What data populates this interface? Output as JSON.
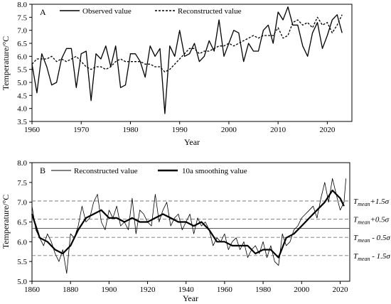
{
  "chart_data": [
    {
      "type": "line",
      "panel_label": "A",
      "xlabel": "Year",
      "ylabel": "Temperature/°C",
      "xlim": [
        1960,
        2025
      ],
      "ylim": [
        3.5,
        8.0
      ],
      "x_ticks": [
        1960,
        1970,
        1980,
        1990,
        2000,
        2010,
        2020
      ],
      "y_ticks": [
        3.5,
        4.0,
        4.5,
        5.0,
        5.5,
        6.0,
        6.5,
        7.0,
        7.5,
        8.0
      ],
      "legend_position": "top",
      "series": [
        {
          "name": "Observed value",
          "style": "solid",
          "x": [
            1960,
            1961,
            1962,
            1963,
            1964,
            1965,
            1966,
            1967,
            1968,
            1969,
            1970,
            1971,
            1972,
            1973,
            1974,
            1975,
            1976,
            1977,
            1978,
            1979,
            1980,
            1981,
            1982,
            1983,
            1984,
            1985,
            1986,
            1987,
            1988,
            1989,
            1990,
            1991,
            1992,
            1993,
            1994,
            1995,
            1996,
            1997,
            1998,
            1999,
            2000,
            2001,
            2002,
            2003,
            2004,
            2005,
            2006,
            2007,
            2008,
            2009,
            2010,
            2011,
            2012,
            2013,
            2014,
            2015,
            2016,
            2017,
            2018,
            2019,
            2020,
            2021,
            2022,
            2023
          ],
          "y": [
            5.7,
            4.6,
            6.1,
            5.6,
            4.9,
            5.0,
            5.9,
            6.3,
            6.3,
            4.8,
            6.1,
            6.2,
            4.3,
            6.1,
            5.9,
            6.4,
            5.6,
            6.4,
            4.8,
            4.9,
            6.1,
            6.1,
            5.8,
            5.2,
            6.4,
            6.0,
            6.3,
            3.8,
            6.4,
            6.0,
            7.0,
            6.0,
            6.1,
            6.5,
            5.8,
            6.0,
            6.6,
            6.2,
            7.4,
            6.0,
            6.5,
            7.0,
            6.9,
            5.8,
            6.5,
            6.2,
            6.2,
            7.0,
            7.2,
            6.5,
            7.7,
            7.4,
            7.9,
            7.2,
            7.2,
            6.4,
            6.0,
            6.9,
            7.3,
            6.3,
            6.8,
            7.4,
            7.6,
            6.9
          ]
        },
        {
          "name": "Reconstructed value",
          "style": "dashed",
          "x": [
            1960,
            1961,
            1962,
            1963,
            1964,
            1965,
            1966,
            1967,
            1968,
            1969,
            1970,
            1971,
            1972,
            1973,
            1974,
            1975,
            1976,
            1977,
            1978,
            1979,
            1980,
            1981,
            1982,
            1983,
            1984,
            1985,
            1986,
            1987,
            1988,
            1989,
            1990,
            1991,
            1992,
            1993,
            1994,
            1995,
            1996,
            1997,
            1998,
            1999,
            2000,
            2001,
            2002,
            2003,
            2004,
            2005,
            2006,
            2007,
            2008,
            2009,
            2010,
            2011,
            2012,
            2013,
            2014,
            2015,
            2016,
            2017,
            2018,
            2019,
            2020,
            2021,
            2022,
            2023
          ],
          "y": [
            5.7,
            5.9,
            5.9,
            5.9,
            6.0,
            5.8,
            5.9,
            5.8,
            5.9,
            6.0,
            5.8,
            5.6,
            5.5,
            5.6,
            5.6,
            5.5,
            5.6,
            5.8,
            5.9,
            5.8,
            5.8,
            5.8,
            5.8,
            5.7,
            5.7,
            5.6,
            5.6,
            5.4,
            5.5,
            5.7,
            5.9,
            6.1,
            6.3,
            6.3,
            6.1,
            6.2,
            6.2,
            6.3,
            6.4,
            6.4,
            6.5,
            6.4,
            6.5,
            6.6,
            6.7,
            6.8,
            6.7,
            6.8,
            6.8,
            6.8,
            7.1,
            6.7,
            6.8,
            7.3,
            7.4,
            7.2,
            7.3,
            7.1,
            7.5,
            7.2,
            7.3,
            6.9,
            7.2,
            7.6
          ]
        }
      ]
    },
    {
      "type": "line",
      "panel_label": "B",
      "xlabel": "Year",
      "ylabel": "Temperature/°C",
      "xlim": [
        1860,
        2025
      ],
      "ylim": [
        5.0,
        8.0
      ],
      "x_ticks": [
        1860,
        1880,
        1900,
        1920,
        1940,
        1960,
        1980,
        2000,
        2020
      ],
      "y_ticks": [
        5.0,
        5.5,
        6.0,
        6.5,
        7.0,
        7.5,
        8.0
      ],
      "legend_position": "top",
      "reference_lines": [
        {
          "y": 7.03,
          "style": "dashed",
          "label_base": "T",
          "label_sub": "mean",
          "label_rest": "+1.5σ"
        },
        {
          "y": 6.57,
          "style": "dashed",
          "label_base": "T",
          "label_sub": "mean",
          "label_rest": "+0.5σ"
        },
        {
          "y": 6.34,
          "style": "solid",
          "label_base": "",
          "label_sub": "",
          "label_rest": ""
        },
        {
          "y": 6.11,
          "style": "dashed",
          "label_base": "T",
          "label_sub": "mean",
          "label_rest": " - 0.5σ"
        },
        {
          "y": 5.65,
          "style": "dashed",
          "label_base": "T",
          "label_sub": "mean",
          "label_rest": " - 1.5σ"
        }
      ],
      "series": [
        {
          "name": "Reconstructed value",
          "style": "thin",
          "x": [
            1860,
            1862,
            1864,
            1866,
            1868,
            1870,
            1872,
            1874,
            1876,
            1878,
            1880,
            1882,
            1884,
            1886,
            1888,
            1890,
            1892,
            1894,
            1896,
            1898,
            1900,
            1902,
            1904,
            1906,
            1908,
            1910,
            1912,
            1914,
            1916,
            1918,
            1920,
            1922,
            1924,
            1926,
            1928,
            1930,
            1932,
            1934,
            1936,
            1938,
            1940,
            1942,
            1944,
            1946,
            1948,
            1950,
            1952,
            1954,
            1956,
            1958,
            1960,
            1962,
            1964,
            1966,
            1968,
            1970,
            1972,
            1974,
            1976,
            1978,
            1980,
            1982,
            1984,
            1986,
            1988,
            1990,
            1992,
            1994,
            1996,
            1998,
            2000,
            2002,
            2004,
            2006,
            2008,
            2010,
            2012,
            2014,
            2016,
            2018,
            2020,
            2022,
            2023
          ],
          "y": [
            6.9,
            6.3,
            6.1,
            5.9,
            6.2,
            6.0,
            5.7,
            5.5,
            5.8,
            5.2,
            6.2,
            6.1,
            6.4,
            6.9,
            6.5,
            6.6,
            7.0,
            7.2,
            6.5,
            6.3,
            6.8,
            6.6,
            6.9,
            6.4,
            6.5,
            6.3,
            7.1,
            6.2,
            6.8,
            6.7,
            6.5,
            6.4,
            7.2,
            6.5,
            6.8,
            7.0,
            6.4,
            6.6,
            6.7,
            6.3,
            6.5,
            6.7,
            6.2,
            6.6,
            6.4,
            6.5,
            6.3,
            5.9,
            6.1,
            6.0,
            6.2,
            5.8,
            6.0,
            6.1,
            5.8,
            6.0,
            5.6,
            5.8,
            5.9,
            5.7,
            6.0,
            5.6,
            5.9,
            5.5,
            5.4,
            6.2,
            5.9,
            6.0,
            6.3,
            6.4,
            6.6,
            6.7,
            6.8,
            6.9,
            6.6,
            7.1,
            7.5,
            7.0,
            7.6,
            7.2,
            6.8,
            7.0,
            7.6
          ]
        },
        {
          "name": "10a smoothing value",
          "style": "thick",
          "x": [
            1860,
            1864,
            1868,
            1872,
            1876,
            1880,
            1884,
            1888,
            1892,
            1896,
            1900,
            1904,
            1908,
            1912,
            1916,
            1920,
            1924,
            1928,
            1932,
            1936,
            1940,
            1944,
            1948,
            1952,
            1956,
            1960,
            1964,
            1968,
            1972,
            1976,
            1980,
            1984,
            1988,
            1992,
            1996,
            2000,
            2004,
            2008,
            2012,
            2016,
            2020,
            2022
          ],
          "y": [
            6.7,
            6.1,
            6.0,
            5.8,
            5.7,
            5.9,
            6.3,
            6.6,
            6.7,
            6.8,
            6.6,
            6.6,
            6.5,
            6.6,
            6.5,
            6.5,
            6.6,
            6.7,
            6.6,
            6.5,
            6.5,
            6.4,
            6.5,
            6.3,
            6.0,
            6.0,
            5.9,
            5.9,
            5.9,
            5.7,
            5.8,
            5.8,
            5.6,
            6.1,
            6.2,
            6.4,
            6.6,
            6.8,
            7.0,
            7.3,
            7.1,
            6.9
          ]
        }
      ]
    }
  ]
}
